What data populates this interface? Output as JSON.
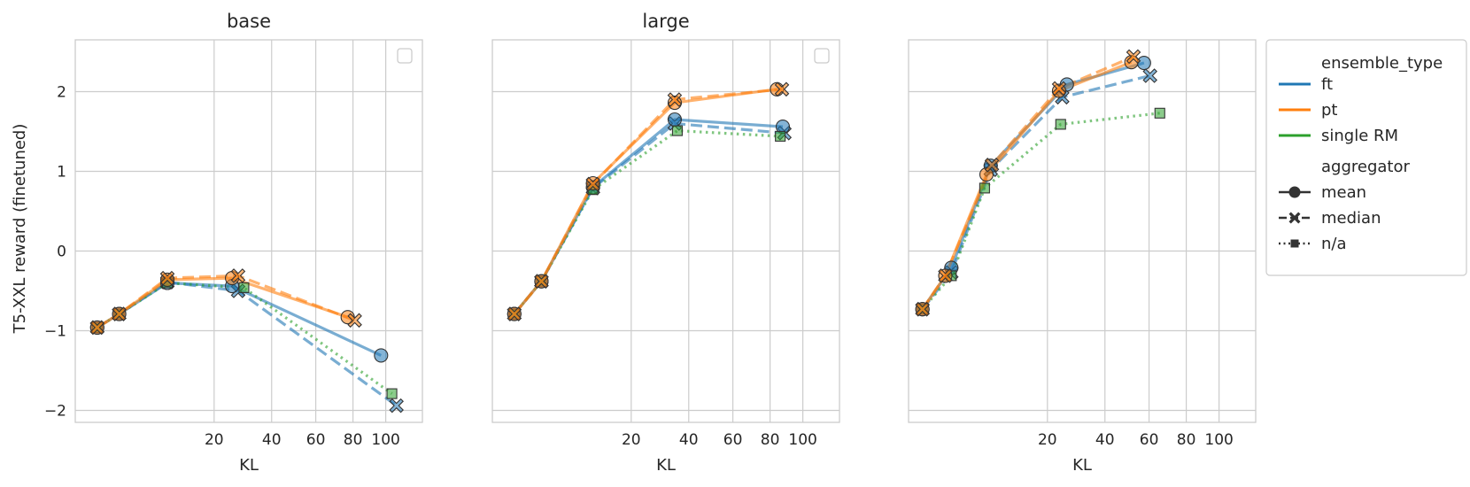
{
  "chart_data": [
    {
      "type": "line",
      "title": "base",
      "xlabel": "KL",
      "ylabel": "T5-XXL reward (finetuned)",
      "x_scale": "sqrt",
      "xlim": [
        0,
        125
      ],
      "ylim": [
        -2.15,
        2.65
      ],
      "x_ticks": [
        20,
        40,
        60,
        80,
        100
      ],
      "x_tick_labels": [
        "20",
        "40",
        "60",
        "80",
        "100"
      ],
      "y_ticks": [
        -2,
        -1,
        0,
        1,
        2
      ],
      "y_tick_labels": [
        "−2",
        "−1",
        "0",
        "1",
        "2"
      ],
      "legend_box": "empty",
      "series": [
        {
          "ensemble_type": "ft",
          "aggregator": "mean",
          "x": [
            0.5,
            2.0,
            8.8,
            25.5,
            97
          ],
          "y": [
            -0.96,
            -0.79,
            -0.4,
            -0.44,
            -1.31
          ]
        },
        {
          "ensemble_type": "ft",
          "aggregator": "median",
          "x": [
            0.5,
            2.0,
            8.8,
            27.5,
            107
          ],
          "y": [
            -0.96,
            -0.79,
            -0.39,
            -0.5,
            -1.94
          ]
        },
        {
          "ensemble_type": "pt",
          "aggregator": "mean",
          "x": [
            0.5,
            2.0,
            8.8,
            25.5,
            77
          ],
          "y": [
            -0.96,
            -0.79,
            -0.36,
            -0.34,
            -0.83
          ]
        },
        {
          "ensemble_type": "pt",
          "aggregator": "median",
          "x": [
            0.5,
            2.0,
            8.8,
            27.5,
            81
          ],
          "y": [
            -0.96,
            -0.79,
            -0.34,
            -0.31,
            -0.87
          ]
        },
        {
          "ensemble_type": "single RM",
          "aggregator": "n/a",
          "x": [
            0.5,
            2.0,
            8.8,
            29.5,
            104
          ],
          "y": [
            -0.96,
            -0.79,
            -0.4,
            -0.46,
            -1.79
          ]
        }
      ]
    },
    {
      "type": "line",
      "title": "large",
      "xlabel": "KL",
      "ylabel": "",
      "x_scale": "sqrt",
      "xlim": [
        0,
        125
      ],
      "ylim": [
        -2.15,
        2.65
      ],
      "x_ticks": [
        20,
        40,
        60,
        80,
        100
      ],
      "x_tick_labels": [
        "20",
        "40",
        "60",
        "80",
        "100"
      ],
      "y_ticks": [
        -2,
        -1,
        0,
        1,
        2
      ],
      "legend_box": "empty",
      "series": [
        {
          "ensemble_type": "ft",
          "aggregator": "mean",
          "x": [
            0.5,
            2.5,
            10.5,
            34.5,
            87.5
          ],
          "y": [
            -0.79,
            -0.38,
            0.8,
            1.65,
            1.56
          ]
        },
        {
          "ensemble_type": "ft",
          "aggregator": "median",
          "x": [
            0.5,
            2.5,
            10.5,
            34.5,
            88.5
          ],
          "y": [
            -0.79,
            -0.38,
            0.79,
            1.6,
            1.48
          ]
        },
        {
          "ensemble_type": "pt",
          "aggregator": "mean",
          "x": [
            0.5,
            2.5,
            10.5,
            34.5,
            84
          ],
          "y": [
            -0.79,
            -0.38,
            0.85,
            1.86,
            2.03
          ]
        },
        {
          "ensemble_type": "pt",
          "aggregator": "median",
          "x": [
            0.5,
            2.5,
            10.5,
            34.5,
            87
          ],
          "y": [
            -0.79,
            -0.38,
            0.84,
            1.9,
            2.03
          ]
        },
        {
          "ensemble_type": "single RM",
          "aggregator": "n/a",
          "x": [
            0.5,
            2.5,
            10.5,
            35.5,
            86
          ],
          "y": [
            -0.79,
            -0.38,
            0.77,
            1.51,
            1.44
          ]
        }
      ]
    },
    {
      "type": "line",
      "title": "",
      "xlabel": "KL",
      "ylabel": "",
      "x_scale": "sqrt",
      "xlim": [
        0,
        125
      ],
      "ylim": [
        -2.15,
        2.65
      ],
      "x_ticks": [
        20,
        40,
        60,
        80,
        100
      ],
      "x_tick_labels": [
        "20",
        "40",
        "60",
        "80",
        "100"
      ],
      "y_ticks": [
        -2,
        -1,
        0,
        1,
        2
      ],
      "series": [
        {
          "ensemble_type": "ft",
          "aggregator": "mean",
          "x": [
            0.2,
            1.9,
            7.0,
            26.0,
            57.5
          ],
          "y": [
            -0.73,
            -0.21,
            1.07,
            2.09,
            2.36
          ]
        },
        {
          "ensemble_type": "ft",
          "aggregator": "median",
          "x": [
            0.2,
            1.9,
            7.0,
            24.5,
            60.5
          ],
          "y": [
            -0.73,
            -0.27,
            1.02,
            1.93,
            2.2
          ]
        },
        {
          "ensemble_type": "pt",
          "aggregator": "mean",
          "x": [
            0.2,
            1.4,
            6.3,
            23.5,
            51.5
          ],
          "y": [
            -0.73,
            -0.31,
            0.96,
            2.01,
            2.37
          ]
        },
        {
          "ensemble_type": "pt",
          "aggregator": "median",
          "x": [
            0.2,
            1.4,
            7.2,
            23.5,
            52.5
          ],
          "y": [
            -0.73,
            -0.31,
            1.08,
            2.04,
            2.44
          ]
        },
        {
          "ensemble_type": "single RM",
          "aggregator": "n/a",
          "x": [
            0.2,
            1.9,
            6.0,
            24.0,
            65.5
          ],
          "y": [
            -0.73,
            -0.31,
            0.79,
            1.59,
            1.73
          ]
        }
      ]
    }
  ],
  "legend": {
    "hue_title": "ensemble_type",
    "hue_entries": [
      {
        "label": "ft",
        "color": "#1f77b4"
      },
      {
        "label": "pt",
        "color": "#ff7f0e"
      },
      {
        "label": "single RM",
        "color": "#2ca02c"
      }
    ],
    "style_title": "aggregator",
    "style_entries": [
      {
        "label": "mean",
        "marker": "circle",
        "dash": "solid"
      },
      {
        "label": "median",
        "marker": "x",
        "dash": "dashed"
      },
      {
        "label": "n/a",
        "marker": "square",
        "dash": "dotted"
      }
    ],
    "placement": "outside-right"
  },
  "colors": {
    "ft": "#1f77b4",
    "pt": "#ff7f0e",
    "single RM": "#2ca02c",
    "grid": "#cccccc",
    "text": "#262626"
  }
}
